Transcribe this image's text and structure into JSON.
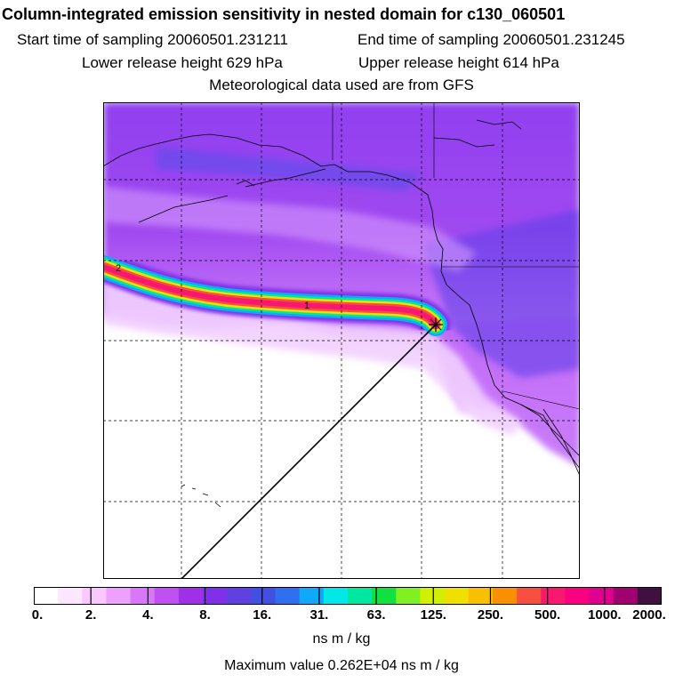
{
  "header": {
    "title": "Column-integrated emission sensitivity in nested domain for c130_060501",
    "start_label": "Start time of sampling 20060501.231211",
    "end_label": "End time of sampling 20060501.231245",
    "lower_label": "Lower release height  629 hPa",
    "upper_label": "Upper release height  614 hPa",
    "met_label": "Meteorological data used are from GFS"
  },
  "map": {
    "plume_labels": [
      "2",
      "1"
    ],
    "background_color": "#ffffff"
  },
  "colorbar": {
    "colors": [
      "#ffffff",
      "#fde6ff",
      "#f8c8ff",
      "#eea0ff",
      "#d878f8",
      "#c050f0",
      "#a030e8",
      "#8030e8",
      "#6040e0",
      "#4050e0",
      "#3070f0",
      "#10a8f8",
      "#00e8e8",
      "#00e8a0",
      "#10e040",
      "#80f020",
      "#d0f000",
      "#f0e000",
      "#f8c000",
      "#f89000",
      "#f85040",
      "#f81870",
      "#f80080",
      "#e00090",
      "#a00070",
      "#401040"
    ],
    "tick_labels": [
      "0.",
      "2.",
      "4.",
      "8.",
      "16.",
      "31.",
      "63.",
      "125.",
      "250.",
      "500.",
      "1000.",
      "2000."
    ],
    "units": "ns m / kg",
    "max_value_text": "Maximum value  0.262E+04 ns m / kg"
  }
}
